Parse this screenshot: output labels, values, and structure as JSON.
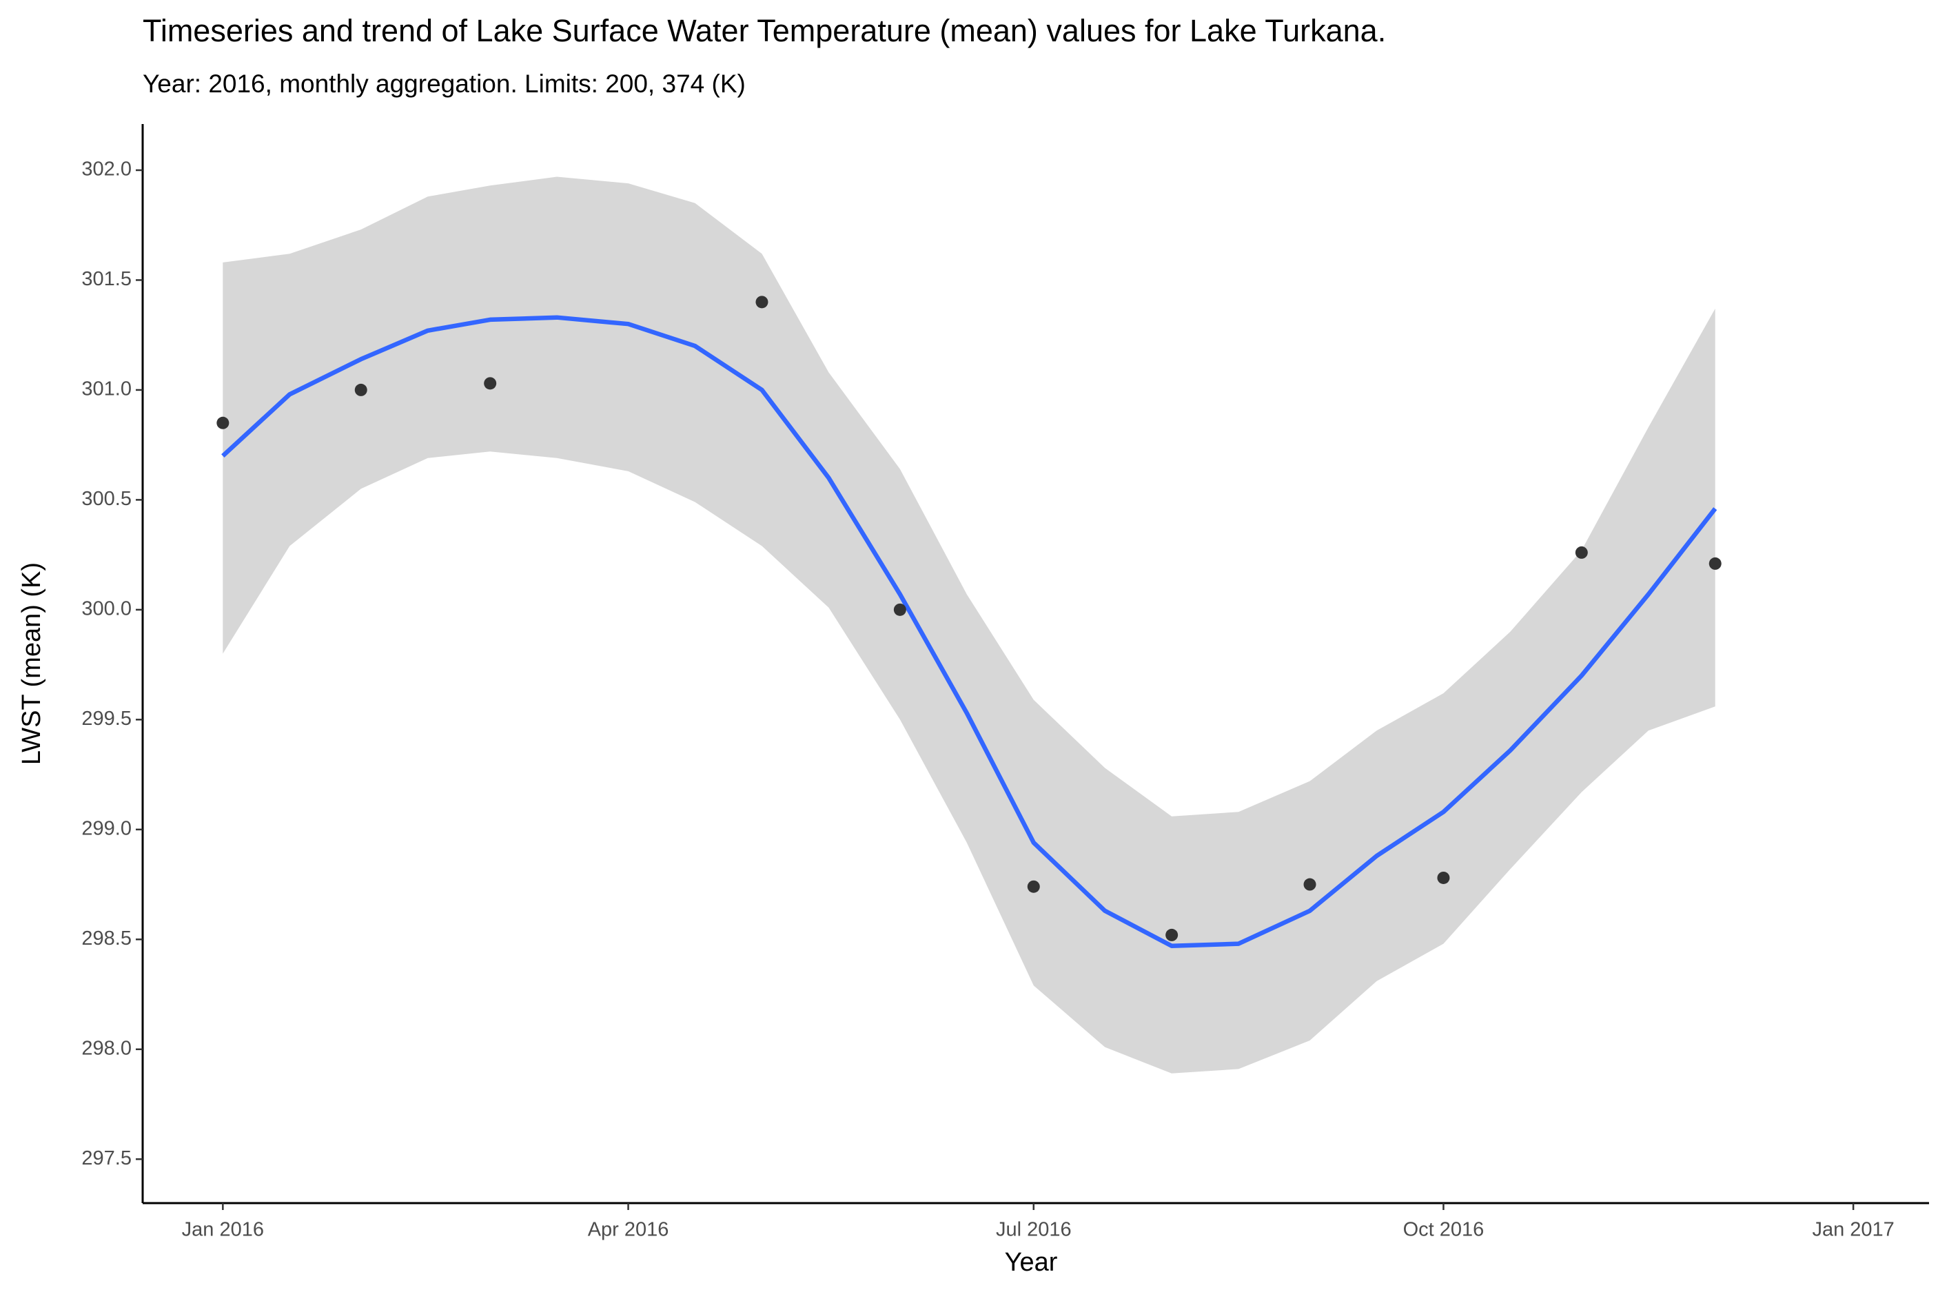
{
  "chart_data": {
    "type": "scatter",
    "title": "Timeseries and trend of Lake Surface Water Temperature (mean) values for Lake Turkana.",
    "subtitle": "Year: 2016, monthly aggregation. Limits: 200, 374 (K)",
    "x_label": "Year",
    "y_label": "LWST (mean) (K)",
    "x": [
      "2016-01-01",
      "2016-02-01",
      "2016-03-01",
      "2016-05-01",
      "2016-06-01",
      "2016-07-01",
      "2016-08-01",
      "2016-09-01",
      "2016-10-01",
      "2016-11-01",
      "2016-12-01"
    ],
    "values": [
      300.85,
      301.0,
      301.03,
      301.4,
      300.0,
      298.74,
      298.52,
      298.75,
      298.78,
      300.26,
      300.21
    ],
    "color": "#333333",
    "trend": {
      "color": "#3366ff",
      "band_color": "#d7d7d7",
      "x": [
        "2016-01-01",
        "2016-01-16",
        "2016-02-01",
        "2016-02-16",
        "2016-03-01",
        "2016-03-16",
        "2016-04-01",
        "2016-04-16",
        "2016-05-01",
        "2016-05-16",
        "2016-06-01",
        "2016-06-16",
        "2016-07-01",
        "2016-07-17",
        "2016-08-01",
        "2016-08-16",
        "2016-09-01",
        "2016-09-16",
        "2016-10-01",
        "2016-10-16",
        "2016-11-01",
        "2016-11-16",
        "2016-12-01"
      ],
      "values": [
        300.7,
        300.98,
        301.14,
        301.27,
        301.32,
        301.33,
        301.3,
        301.2,
        301.0,
        300.6,
        300.07,
        299.53,
        298.94,
        298.63,
        298.47,
        298.48,
        298.63,
        298.88,
        299.08,
        299.36,
        299.7,
        300.07,
        300.46
      ],
      "upper": [
        301.58,
        301.62,
        301.73,
        301.88,
        301.93,
        301.97,
        301.94,
        301.85,
        301.62,
        301.08,
        300.64,
        300.07,
        299.59,
        299.28,
        299.06,
        299.08,
        299.22,
        299.45,
        299.62,
        299.9,
        300.27,
        300.83,
        301.37
      ],
      "lower": [
        299.8,
        300.29,
        300.55,
        300.69,
        300.72,
        300.69,
        300.63,
        300.49,
        300.29,
        300.01,
        299.5,
        298.94,
        298.29,
        298.01,
        297.89,
        297.91,
        298.04,
        298.31,
        298.48,
        298.82,
        299.17,
        299.45,
        299.56
      ]
    },
    "xlim": [
      "2015-12-14",
      "2017-01-18"
    ],
    "xticks": [
      {
        "value": "2016-01-01",
        "label": "Jan 2016"
      },
      {
        "value": "2016-04-01",
        "label": "Apr 2016"
      },
      {
        "value": "2016-07-01",
        "label": "Jul 2016"
      },
      {
        "value": "2016-10-01",
        "label": "Oct 2016"
      },
      {
        "value": "2017-01-01",
        "label": "Jan 2017"
      }
    ],
    "ylim": [
      297.3,
      302.21
    ],
    "yticks": [
      {
        "value": 297.5,
        "label": "297.5"
      },
      {
        "value": 298,
        "label": "298.0"
      },
      {
        "value": 298.5,
        "label": "298.5"
      },
      {
        "value": 299,
        "label": "299.0"
      },
      {
        "value": 299.5,
        "label": "299.5"
      },
      {
        "value": 300,
        "label": "300.0"
      },
      {
        "value": 300.5,
        "label": "300.5"
      },
      {
        "value": 301,
        "label": "301.0"
      },
      {
        "value": 301.5,
        "label": "301.5"
      },
      {
        "value": 302,
        "label": "302.0"
      }
    ],
    "grid": false
  }
}
